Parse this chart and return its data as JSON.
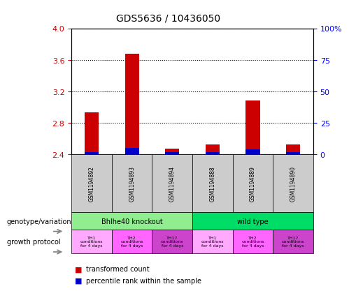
{
  "title": "GDS5636 / 10436050",
  "samples": [
    "GSM1194892",
    "GSM1194893",
    "GSM1194894",
    "GSM1194888",
    "GSM1194889",
    "GSM1194890"
  ],
  "transformed_count": [
    2.93,
    3.68,
    2.47,
    2.53,
    3.08,
    2.53
  ],
  "percentile_rank": [
    2.0,
    5.0,
    2.0,
    2.0,
    4.0,
    2.0
  ],
  "bar_base": 2.4,
  "ylim": [
    2.4,
    4.0
  ],
  "y_left_ticks": [
    2.4,
    2.8,
    3.2,
    3.6,
    4.0
  ],
  "y_right_ticks": [
    0,
    25,
    50,
    75,
    100
  ],
  "red_color": "#cc0000",
  "blue_color": "#0000cc",
  "genotype_groups": [
    {
      "label": "Bhlhe40 knockout",
      "color": "#90ee90",
      "span": [
        0,
        3
      ]
    },
    {
      "label": "wild type",
      "color": "#00dd66",
      "span": [
        3,
        6
      ]
    }
  ],
  "growth_protocol_labels": [
    "TH1\nconditions\nfor 4 days",
    "TH2\nconditions\nfor 4 days",
    "TH17\nconditions\nfor 4 days",
    "TH1\nconditions\nfor 4 days",
    "TH2\nconditions\nfor 4 days",
    "TH17\nconditions\nfor 4 days"
  ],
  "growth_colors": [
    "#ffaaff",
    "#ff66ff",
    "#cc44cc",
    "#ffaaff",
    "#ff66ff",
    "#cc44cc"
  ],
  "legend_red": "transformed count",
  "legend_blue": "percentile rank within the sample",
  "left_label_1": "genotype/variation",
  "left_label_2": "growth protocol",
  "sample_box_color": "#cccccc"
}
